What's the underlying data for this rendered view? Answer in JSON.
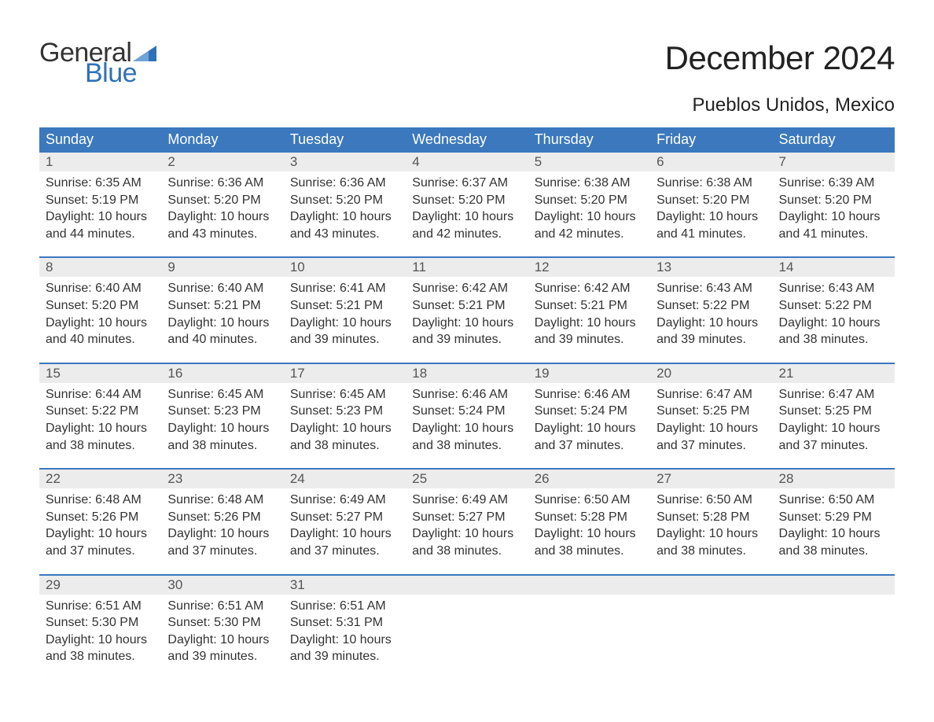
{
  "logo": {
    "general": "General",
    "blue": "Blue",
    "flag_color": "#2f71b8"
  },
  "title": "December 2024",
  "location": "Pueblos Unidos, Mexico",
  "colors": {
    "header_bg": "#3b78bd",
    "header_text": "#ffffff",
    "daynum_bg": "#ececec",
    "daynum_text": "#555555",
    "body_text": "#333333",
    "separator": "#3b78bd",
    "background": "#ffffff"
  },
  "columns": [
    "Sunday",
    "Monday",
    "Tuesday",
    "Wednesday",
    "Thursday",
    "Friday",
    "Saturday"
  ],
  "weeks": [
    [
      {
        "n": "1",
        "sunrise": "6:35 AM",
        "sunset": "5:19 PM",
        "day_h": 10,
        "day_m": 44
      },
      {
        "n": "2",
        "sunrise": "6:36 AM",
        "sunset": "5:20 PM",
        "day_h": 10,
        "day_m": 43
      },
      {
        "n": "3",
        "sunrise": "6:36 AM",
        "sunset": "5:20 PM",
        "day_h": 10,
        "day_m": 43
      },
      {
        "n": "4",
        "sunrise": "6:37 AM",
        "sunset": "5:20 PM",
        "day_h": 10,
        "day_m": 42
      },
      {
        "n": "5",
        "sunrise": "6:38 AM",
        "sunset": "5:20 PM",
        "day_h": 10,
        "day_m": 42
      },
      {
        "n": "6",
        "sunrise": "6:38 AM",
        "sunset": "5:20 PM",
        "day_h": 10,
        "day_m": 41
      },
      {
        "n": "7",
        "sunrise": "6:39 AM",
        "sunset": "5:20 PM",
        "day_h": 10,
        "day_m": 41
      }
    ],
    [
      {
        "n": "8",
        "sunrise": "6:40 AM",
        "sunset": "5:20 PM",
        "day_h": 10,
        "day_m": 40
      },
      {
        "n": "9",
        "sunrise": "6:40 AM",
        "sunset": "5:21 PM",
        "day_h": 10,
        "day_m": 40
      },
      {
        "n": "10",
        "sunrise": "6:41 AM",
        "sunset": "5:21 PM",
        "day_h": 10,
        "day_m": 39
      },
      {
        "n": "11",
        "sunrise": "6:42 AM",
        "sunset": "5:21 PM",
        "day_h": 10,
        "day_m": 39
      },
      {
        "n": "12",
        "sunrise": "6:42 AM",
        "sunset": "5:21 PM",
        "day_h": 10,
        "day_m": 39
      },
      {
        "n": "13",
        "sunrise": "6:43 AM",
        "sunset": "5:22 PM",
        "day_h": 10,
        "day_m": 39
      },
      {
        "n": "14",
        "sunrise": "6:43 AM",
        "sunset": "5:22 PM",
        "day_h": 10,
        "day_m": 38
      }
    ],
    [
      {
        "n": "15",
        "sunrise": "6:44 AM",
        "sunset": "5:22 PM",
        "day_h": 10,
        "day_m": 38
      },
      {
        "n": "16",
        "sunrise": "6:45 AM",
        "sunset": "5:23 PM",
        "day_h": 10,
        "day_m": 38
      },
      {
        "n": "17",
        "sunrise": "6:45 AM",
        "sunset": "5:23 PM",
        "day_h": 10,
        "day_m": 38
      },
      {
        "n": "18",
        "sunrise": "6:46 AM",
        "sunset": "5:24 PM",
        "day_h": 10,
        "day_m": 38
      },
      {
        "n": "19",
        "sunrise": "6:46 AM",
        "sunset": "5:24 PM",
        "day_h": 10,
        "day_m": 37
      },
      {
        "n": "20",
        "sunrise": "6:47 AM",
        "sunset": "5:25 PM",
        "day_h": 10,
        "day_m": 37
      },
      {
        "n": "21",
        "sunrise": "6:47 AM",
        "sunset": "5:25 PM",
        "day_h": 10,
        "day_m": 37
      }
    ],
    [
      {
        "n": "22",
        "sunrise": "6:48 AM",
        "sunset": "5:26 PM",
        "day_h": 10,
        "day_m": 37
      },
      {
        "n": "23",
        "sunrise": "6:48 AM",
        "sunset": "5:26 PM",
        "day_h": 10,
        "day_m": 37
      },
      {
        "n": "24",
        "sunrise": "6:49 AM",
        "sunset": "5:27 PM",
        "day_h": 10,
        "day_m": 37
      },
      {
        "n": "25",
        "sunrise": "6:49 AM",
        "sunset": "5:27 PM",
        "day_h": 10,
        "day_m": 38
      },
      {
        "n": "26",
        "sunrise": "6:50 AM",
        "sunset": "5:28 PM",
        "day_h": 10,
        "day_m": 38
      },
      {
        "n": "27",
        "sunrise": "6:50 AM",
        "sunset": "5:28 PM",
        "day_h": 10,
        "day_m": 38
      },
      {
        "n": "28",
        "sunrise": "6:50 AM",
        "sunset": "5:29 PM",
        "day_h": 10,
        "day_m": 38
      }
    ],
    [
      {
        "n": "29",
        "sunrise": "6:51 AM",
        "sunset": "5:30 PM",
        "day_h": 10,
        "day_m": 38
      },
      {
        "n": "30",
        "sunrise": "6:51 AM",
        "sunset": "5:30 PM",
        "day_h": 10,
        "day_m": 39
      },
      {
        "n": "31",
        "sunrise": "6:51 AM",
        "sunset": "5:31 PM",
        "day_h": 10,
        "day_m": 39
      },
      null,
      null,
      null,
      null
    ]
  ],
  "labels": {
    "sunrise_prefix": "Sunrise: ",
    "sunset_prefix": "Sunset: ",
    "daylight_prefix": "Daylight: ",
    "hours_word": " hours",
    "and_word": "and ",
    "minutes_word": " minutes."
  },
  "typography": {
    "title_fontsize": 42,
    "location_fontsize": 24,
    "header_fontsize": 18,
    "daynum_fontsize": 17,
    "detail_fontsize": 16,
    "logo_fontsize": 34
  }
}
